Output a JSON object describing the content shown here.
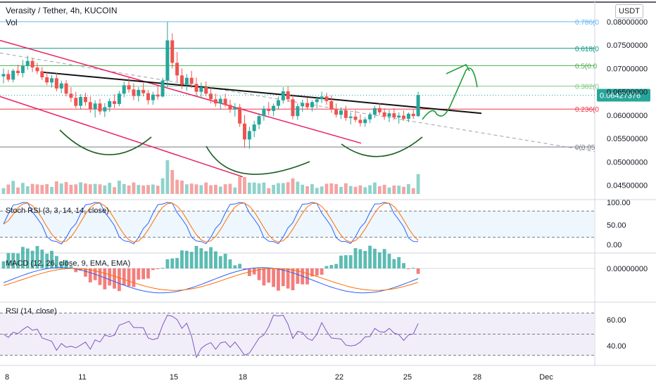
{
  "header": {
    "title": "Verasity / Tether, 4h, KUCOIN",
    "vol_label": "Vol",
    "currency_badge": "USDT"
  },
  "chart_data": {
    "type": "candlestick",
    "price_axis": {
      "ticks": [
        "0.08000000",
        "0.07500000",
        "0.07000000",
        "0.06500000",
        "0.06000000",
        "0.05500000",
        "0.05000000",
        "0.04500000"
      ],
      "tick_values": [
        0.08,
        0.075,
        0.07,
        0.065,
        0.06,
        0.055,
        0.05,
        0.045
      ],
      "range": [
        0.0433,
        0.0825
      ]
    },
    "last_price": "0.06427376",
    "last_price_value": 0.06427376,
    "fib_levels": [
      {
        "label": "0.786(0",
        "value": 0.08,
        "color": "#64b5f6"
      },
      {
        "label": "0.618(0",
        "value": 0.0743,
        "color": "#089981"
      },
      {
        "label": "0.5(0.0",
        "value": 0.0706,
        "color": "#4caf50"
      },
      {
        "label": "0.382(0",
        "value": 0.0662,
        "color": "#81c784"
      },
      {
        "label": "0.236(0",
        "value": 0.0613,
        "color": "#f23645"
      },
      {
        "label": "0(0.05",
        "value": 0.0532,
        "color": "#787b86"
      }
    ],
    "x_axis": {
      "labels": [
        "8",
        "11",
        "15",
        "18",
        "22",
        "25",
        "28",
        "Dec"
      ]
    },
    "candles": [
      [
        0.0683,
        0.07,
        0.0668,
        0.0688
      ],
      [
        0.0688,
        0.0697,
        0.0671,
        0.0676
      ],
      [
        0.0676,
        0.0699,
        0.067,
        0.0695
      ],
      [
        0.0695,
        0.0708,
        0.0684,
        0.069
      ],
      [
        0.069,
        0.0718,
        0.0681,
        0.0705
      ],
      [
        0.0705,
        0.0727,
        0.0697,
        0.0716
      ],
      [
        0.0716,
        0.0722,
        0.0692,
        0.0702
      ],
      [
        0.0702,
        0.0712,
        0.0688,
        0.0694
      ],
      [
        0.0694,
        0.0703,
        0.0675,
        0.0681
      ],
      [
        0.0681,
        0.0692,
        0.0664,
        0.067
      ],
      [
        0.067,
        0.0686,
        0.0659,
        0.0679
      ],
      [
        0.0679,
        0.069,
        0.0651,
        0.0657
      ],
      [
        0.0657,
        0.0674,
        0.0647,
        0.0668
      ],
      [
        0.0668,
        0.0675,
        0.064,
        0.0646
      ],
      [
        0.0646,
        0.066,
        0.0628,
        0.0637
      ],
      [
        0.0637,
        0.065,
        0.0615,
        0.062
      ],
      [
        0.062,
        0.0645,
        0.0612,
        0.0639
      ],
      [
        0.0639,
        0.0648,
        0.062,
        0.0628
      ],
      [
        0.0628,
        0.064,
        0.0605,
        0.0613
      ],
      [
        0.0613,
        0.0632,
        0.0595,
        0.0625
      ],
      [
        0.0625,
        0.0635,
        0.0601,
        0.0608
      ],
      [
        0.0608,
        0.0626,
        0.0596,
        0.0617
      ],
      [
        0.0617,
        0.0636,
        0.0607,
        0.063
      ],
      [
        0.063,
        0.0645,
        0.0615,
        0.0624
      ],
      [
        0.0624,
        0.0652,
        0.0619,
        0.0646
      ],
      [
        0.0646,
        0.0672,
        0.0638,
        0.0664
      ],
      [
        0.0664,
        0.068,
        0.0648,
        0.0655
      ],
      [
        0.0655,
        0.0668,
        0.0632,
        0.0641
      ],
      [
        0.0641,
        0.066,
        0.0629,
        0.0654
      ],
      [
        0.0654,
        0.0669,
        0.064,
        0.0647
      ],
      [
        0.0647,
        0.0654,
        0.0623,
        0.0632
      ],
      [
        0.0632,
        0.065,
        0.0622,
        0.0644
      ],
      [
        0.0644,
        0.0662,
        0.0633,
        0.064
      ],
      [
        0.064,
        0.068,
        0.0638,
        0.0674
      ],
      [
        0.0674,
        0.08,
        0.066,
        0.076
      ],
      [
        0.076,
        0.0775,
        0.07,
        0.0712
      ],
      [
        0.0712,
        0.0735,
        0.0672,
        0.0685
      ],
      [
        0.0685,
        0.07,
        0.0656,
        0.0665
      ],
      [
        0.0665,
        0.0688,
        0.0652,
        0.068
      ],
      [
        0.068,
        0.0695,
        0.0658,
        0.0667
      ],
      [
        0.0667,
        0.068,
        0.0641,
        0.065
      ],
      [
        0.065,
        0.067,
        0.0636,
        0.066
      ],
      [
        0.066,
        0.0672,
        0.064,
        0.0646
      ],
      [
        0.0646,
        0.066,
        0.0625,
        0.0634
      ],
      [
        0.0634,
        0.0646,
        0.0618,
        0.0625
      ],
      [
        0.0625,
        0.0641,
        0.0612,
        0.0635
      ],
      [
        0.0635,
        0.0646,
        0.0618,
        0.0622
      ],
      [
        0.0622,
        0.0633,
        0.0605,
        0.0612
      ],
      [
        0.0612,
        0.0626,
        0.0597,
        0.0617
      ],
      [
        0.0617,
        0.0624,
        0.0575,
        0.0582
      ],
      [
        0.0582,
        0.06,
        0.053,
        0.0548
      ],
      [
        0.0548,
        0.0575,
        0.0528,
        0.0566
      ],
      [
        0.0566,
        0.0588,
        0.0553,
        0.058
      ],
      [
        0.058,
        0.0604,
        0.057,
        0.0598
      ],
      [
        0.0598,
        0.062,
        0.0588,
        0.0614
      ],
      [
        0.0614,
        0.0628,
        0.06,
        0.0609
      ],
      [
        0.0609,
        0.0625,
        0.0598,
        0.062
      ],
      [
        0.062,
        0.064,
        0.0612,
        0.0632
      ],
      [
        0.0632,
        0.066,
        0.0625,
        0.0651
      ],
      [
        0.0651,
        0.0662,
        0.0628,
        0.0634
      ],
      [
        0.0634,
        0.0645,
        0.0591,
        0.0598
      ],
      [
        0.0598,
        0.0625,
        0.059,
        0.0619
      ],
      [
        0.0619,
        0.0633,
        0.0607,
        0.0626
      ],
      [
        0.0626,
        0.0638,
        0.0612,
        0.0617
      ],
      [
        0.0617,
        0.0632,
        0.0608,
        0.0628
      ],
      [
        0.0628,
        0.064,
        0.0615,
        0.0634
      ],
      [
        0.0634,
        0.065,
        0.0626,
        0.064
      ],
      [
        0.064,
        0.0648,
        0.0622,
        0.063
      ],
      [
        0.063,
        0.0642,
        0.0605,
        0.0612
      ],
      [
        0.0612,
        0.0625,
        0.0595,
        0.0601
      ],
      [
        0.0601,
        0.0617,
        0.0592,
        0.061
      ],
      [
        0.061,
        0.062,
        0.0588,
        0.0594
      ],
      [
        0.0594,
        0.0606,
        0.058,
        0.0597
      ],
      [
        0.0597,
        0.0611,
        0.0585,
        0.059
      ],
      [
        0.059,
        0.0602,
        0.0576,
        0.0583
      ],
      [
        0.0583,
        0.0596,
        0.0575,
        0.0591
      ],
      [
        0.0591,
        0.0606,
        0.0583,
        0.0601
      ],
      [
        0.0601,
        0.062,
        0.0594,
        0.0615
      ],
      [
        0.0615,
        0.0626,
        0.06,
        0.0606
      ],
      [
        0.0606,
        0.0615,
        0.059,
        0.0597
      ],
      [
        0.0597,
        0.0611,
        0.0585,
        0.0604
      ],
      [
        0.0604,
        0.0615,
        0.059,
        0.0595
      ],
      [
        0.0595,
        0.0606,
        0.0582,
        0.0599
      ],
      [
        0.0599,
        0.061,
        0.0588,
        0.0592
      ],
      [
        0.0592,
        0.0606,
        0.0585,
        0.0603
      ],
      [
        0.0603,
        0.0612,
        0.0592,
        0.0598
      ],
      [
        0.0598,
        0.065,
        0.0596,
        0.0643
      ]
    ],
    "volume_max_label_note": "",
    "indicators": [
      {
        "name": "Stoch RSI",
        "label": "Stoch RSI (3, 3, 14, 14, close)",
        "ticks": [
          "100.00",
          "50.00",
          "0.00"
        ],
        "bands": [
          80,
          20
        ],
        "range": [
          0,
          100
        ]
      },
      {
        "name": "MACD",
        "label": "MACD (12, 26, close, 9, EMA, EMA)",
        "ticks": [
          "0.00000000"
        ]
      },
      {
        "name": "RSI",
        "label": "RSI (14, close)",
        "ticks": [
          "60.00",
          "40.00"
        ],
        "bands": [
          70,
          30
        ],
        "range": [
          25,
          75
        ]
      }
    ],
    "colors": {
      "up": "#26a69a",
      "down": "#ef5350",
      "up_vol": "#8fd3cb",
      "down_vol": "#f5a3a1",
      "trend_pink": "#e91e63",
      "neckline": "#111111",
      "pattern": "#1b5e20",
      "projection": "#1e9e3a",
      "k_line": "#2962ff",
      "d_line": "#ff6d00",
      "rsi": "#7e57c2",
      "last_price": "#26a69a"
    }
  }
}
